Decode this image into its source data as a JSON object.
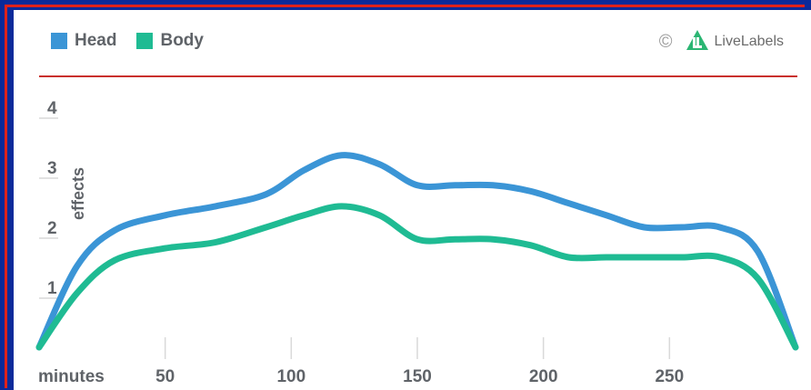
{
  "legend": [
    {
      "name": "Head",
      "color": "#3b95d6"
    },
    {
      "name": "Body",
      "color": "#1fbb93"
    }
  ],
  "brand": {
    "copyright": "©",
    "name": "LiveLabels",
    "logo_icon": "livelabels-logo-icon",
    "logo_color": "#2bb673"
  },
  "chart_data": {
    "type": "line",
    "title": "",
    "xlabel": "minutes",
    "ylabel": "effects",
    "xlim": [
      0,
      300
    ],
    "ylim": [
      0,
      4.5
    ],
    "x_ticks": [
      50,
      100,
      150,
      200,
      250
    ],
    "y_ticks": [
      1,
      2,
      3,
      4
    ],
    "grid": false,
    "legend_position": "top-left",
    "x": [
      0,
      15,
      30,
      50,
      70,
      90,
      105,
      120,
      135,
      150,
      165,
      180,
      195,
      210,
      225,
      240,
      255,
      270,
      285,
      300
    ],
    "series": [
      {
        "name": "Head",
        "color": "#3b95d6",
        "values": [
          0,
          1.35,
          1.95,
          2.2,
          2.35,
          2.55,
          2.95,
          3.2,
          3.05,
          2.7,
          2.7,
          2.7,
          2.6,
          2.4,
          2.2,
          2.0,
          2.0,
          2.0,
          1.6,
          0
        ]
      },
      {
        "name": "Body",
        "color": "#1fbb93",
        "values": [
          0,
          0.9,
          1.45,
          1.65,
          1.75,
          2.0,
          2.2,
          2.35,
          2.2,
          1.8,
          1.8,
          1.8,
          1.7,
          1.5,
          1.5,
          1.5,
          1.5,
          1.5,
          1.15,
          0
        ]
      }
    ]
  }
}
